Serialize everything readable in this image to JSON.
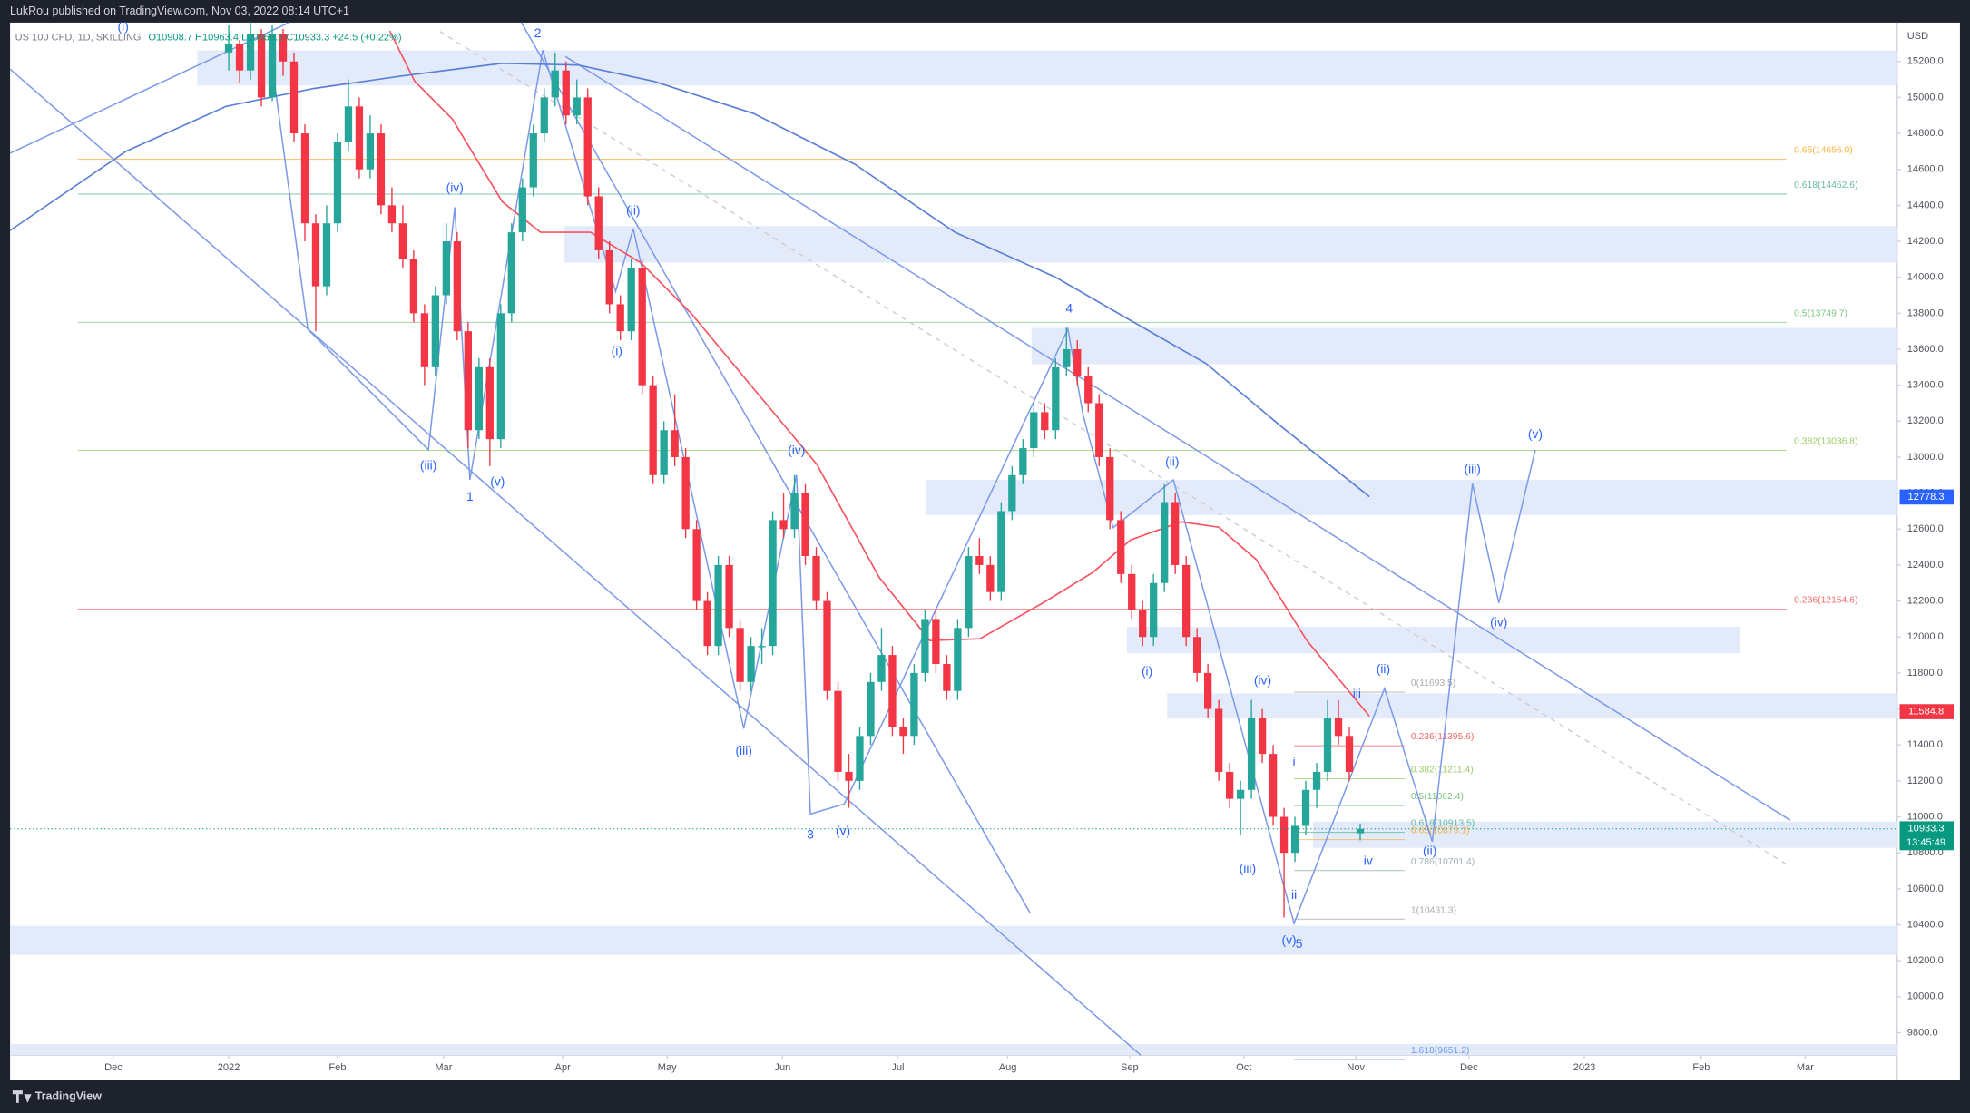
{
  "chart_data": {
    "type": "candlestick",
    "header": "LukRou published on TradingView.com, Nov 03, 2022 08:14 UTC+1",
    "symbol": "US 100 CFD, 1D, SKILLING",
    "legend_values": "O10908.7 H10963.4 L10869.2 C10933.3 +24.5 (+0.22%)",
    "currency": "USD",
    "footer": "TradingView",
    "up_color": "#26a69a",
    "down_color": "#f23645",
    "xlim": [
      -40.2,
      306.7
    ],
    "ylim": [
      9535,
      15416
    ],
    "xticks": [
      {
        "value": -21.2,
        "label": "Dec"
      },
      {
        "value": 0,
        "label": "2022"
      },
      {
        "value": 20,
        "label": "Feb"
      },
      {
        "value": 39.5,
        "label": "Mar"
      },
      {
        "value": 61.4,
        "label": "Apr"
      },
      {
        "value": 80.6,
        "label": "May"
      },
      {
        "value": 101.8,
        "label": "Jun"
      },
      {
        "value": 123,
        "label": "Jul"
      },
      {
        "value": 143.2,
        "label": "Aug"
      },
      {
        "value": 165.6,
        "label": "Sep"
      },
      {
        "value": 186.6,
        "label": "Oct"
      },
      {
        "value": 207.2,
        "label": "Nov"
      },
      {
        "value": 228,
        "label": "Dec"
      },
      {
        "value": 249.2,
        "label": "2023"
      },
      {
        "value": 270.7,
        "label": "Feb"
      },
      {
        "value": 289.8,
        "label": "Mar"
      }
    ],
    "yticks": [
      {
        "value": 15200,
        "label": "15200.0"
      },
      {
        "value": 15000,
        "label": "15000.0"
      },
      {
        "value": 14800,
        "label": "14800.0"
      },
      {
        "value": 14600,
        "label": "14600.0"
      },
      {
        "value": 14400,
        "label": "14400.0"
      },
      {
        "value": 14200,
        "label": "14200.0"
      },
      {
        "value": 14000,
        "label": "14000.0"
      },
      {
        "value": 13800,
        "label": "13800.0"
      },
      {
        "value": 13600,
        "label": "13600.0"
      },
      {
        "value": 13400,
        "label": "13400.0"
      },
      {
        "value": 13200,
        "label": "13200.0"
      },
      {
        "value": 13000,
        "label": "13000.0"
      },
      {
        "value": 12800,
        "label": "12800.0"
      },
      {
        "value": 12600,
        "label": "12600.0"
      },
      {
        "value": 12400,
        "label": "12400.0"
      },
      {
        "value": 12200,
        "label": "12200.0"
      },
      {
        "value": 12000,
        "label": "12000.0"
      },
      {
        "value": 11800,
        "label": "11800.0"
      },
      {
        "value": 11600,
        "label": "11600.0"
      },
      {
        "value": 11400,
        "label": "11400.0"
      },
      {
        "value": 11200,
        "label": "11200.0"
      },
      {
        "value": 11000,
        "label": "11000.0"
      },
      {
        "value": 10800,
        "label": "10800.0"
      },
      {
        "value": 10600,
        "label": "10600.0"
      },
      {
        "value": 10400,
        "label": "10400.0"
      },
      {
        "value": 10200,
        "label": "10200.0"
      },
      {
        "value": 10000,
        "label": "10000.0"
      },
      {
        "value": 9800,
        "label": "9800.0"
      }
    ],
    "candles": [
      [
        0,
        15250,
        15400,
        15150,
        15300
      ],
      [
        2,
        15300,
        15320,
        15080,
        15150
      ],
      [
        4,
        15150,
        15420,
        15100,
        15350
      ],
      [
        6,
        15350,
        15380,
        14950,
        15000
      ],
      [
        8,
        15000,
        15400,
        14980,
        15350
      ],
      [
        10,
        15350,
        15380,
        15120,
        15200
      ],
      [
        12,
        15200,
        15250,
        14750,
        14800
      ],
      [
        14,
        14800,
        14850,
        14200,
        14300
      ],
      [
        16,
        14300,
        14350,
        13700,
        13950
      ],
      [
        18,
        13950,
        14400,
        13900,
        14300
      ],
      [
        20,
        14300,
        14800,
        14250,
        14750
      ],
      [
        22,
        14750,
        15100,
        14700,
        14950
      ],
      [
        24,
        14950,
        15000,
        14550,
        14600
      ],
      [
        26,
        14600,
        14900,
        14550,
        14800
      ],
      [
        28,
        14800,
        14850,
        14350,
        14400
      ],
      [
        30,
        14400,
        14500,
        14250,
        14300
      ],
      [
        32,
        14300,
        14400,
        14050,
        14100
      ],
      [
        34,
        14100,
        14150,
        13750,
        13800
      ],
      [
        36,
        13800,
        13850,
        13400,
        13500
      ],
      [
        38,
        13500,
        13950,
        13450,
        13900
      ],
      [
        40,
        13900,
        14300,
        13850,
        14200
      ],
      [
        42,
        14200,
        14250,
        13650,
        13700
      ],
      [
        44,
        13700,
        13750,
        13050,
        13150
      ],
      [
        46,
        13150,
        13550,
        13100,
        13500
      ],
      [
        48,
        13500,
        13550,
        12950,
        13100
      ],
      [
        50,
        13100,
        13850,
        13050,
        13800
      ],
      [
        52,
        13800,
        14300,
        13750,
        14250
      ],
      [
        54,
        14250,
        14550,
        14200,
        14500
      ],
      [
        56,
        14500,
        14850,
        14450,
        14800
      ],
      [
        58,
        14800,
        15050,
        14750,
        15000
      ],
      [
        60,
        15000,
        15250,
        14950,
        15150
      ],
      [
        62,
        15150,
        15200,
        14850,
        14900
      ],
      [
        64,
        14900,
        15100,
        14850,
        15000
      ],
      [
        66,
        15000,
        15050,
        14400,
        14450
      ],
      [
        68,
        14450,
        14500,
        14100,
        14150
      ],
      [
        70,
        14150,
        14200,
        13800,
        13850
      ],
      [
        72,
        13850,
        13900,
        13650,
        13700
      ],
      [
        74,
        13700,
        14100,
        13650,
        14050
      ],
      [
        76,
        14050,
        14100,
        13350,
        13400
      ],
      [
        78,
        13400,
        13450,
        12850,
        12900
      ],
      [
        80,
        12900,
        13200,
        12850,
        13150
      ],
      [
        82,
        13150,
        13350,
        12950,
        13000
      ],
      [
        84,
        13000,
        13050,
        12550,
        12600
      ],
      [
        86,
        12600,
        12650,
        12150,
        12200
      ],
      [
        88,
        12200,
        12250,
        11900,
        11950
      ],
      [
        90,
        11950,
        12450,
        11900,
        12400
      ],
      [
        92,
        12400,
        12450,
        12000,
        12050
      ],
      [
        94,
        12050,
        12100,
        11700,
        11750
      ],
      [
        96,
        11750,
        12000,
        11700,
        11950
      ],
      [
        98,
        11950,
        12050,
        11850,
        11950
      ],
      [
        100,
        11950,
        12700,
        11900,
        12650
      ],
      [
        102,
        12650,
        12800,
        12550,
        12600
      ],
      [
        104,
        12600,
        12900,
        12550,
        12800
      ],
      [
        106,
        12800,
        12850,
        12400,
        12450
      ],
      [
        108,
        12450,
        12500,
        12150,
        12200
      ],
      [
        110,
        12200,
        12250,
        11650,
        11700
      ],
      [
        112,
        11700,
        11750,
        11200,
        11250
      ],
      [
        114,
        11250,
        11350,
        11050,
        11200
      ],
      [
        116,
        11200,
        11500,
        11150,
        11450
      ],
      [
        118,
        11450,
        11800,
        11400,
        11750
      ],
      [
        120,
        11750,
        12050,
        11700,
        11900
      ],
      [
        122,
        11900,
        11950,
        11450,
        11500
      ],
      [
        124,
        11500,
        11550,
        11350,
        11450
      ],
      [
        126,
        11450,
        11850,
        11400,
        11800
      ],
      [
        128,
        11800,
        12150,
        11750,
        12100
      ],
      [
        130,
        12100,
        12150,
        11800,
        11850
      ],
      [
        132,
        11850,
        11900,
        11650,
        11700
      ],
      [
        134,
        11700,
        12100,
        11650,
        12050
      ],
      [
        136,
        12050,
        12500,
        12000,
        12450
      ],
      [
        138,
        12450,
        12550,
        12350,
        12400
      ],
      [
        140,
        12400,
        12450,
        12200,
        12250
      ],
      [
        142,
        12250,
        12750,
        12200,
        12700
      ],
      [
        144,
        12700,
        12950,
        12650,
        12900
      ],
      [
        146,
        12900,
        13100,
        12850,
        13050
      ],
      [
        148,
        13050,
        13300,
        13000,
        13250
      ],
      [
        150,
        13250,
        13300,
        13100,
        13150
      ],
      [
        152,
        13150,
        13550,
        13100,
        13500
      ],
      [
        154,
        13500,
        13720,
        13450,
        13600
      ],
      [
        156,
        13600,
        13650,
        13400,
        13450
      ],
      [
        158,
        13450,
        13500,
        13250,
        13300
      ],
      [
        160,
        13300,
        13350,
        12950,
        13000
      ],
      [
        162,
        13000,
        13050,
        12600,
        12650
      ],
      [
        164,
        12650,
        12700,
        12300,
        12350
      ],
      [
        166,
        12350,
        12400,
        12100,
        12150
      ],
      [
        168,
        12150,
        12200,
        11950,
        12000
      ],
      [
        170,
        12000,
        12350,
        11950,
        12300
      ],
      [
        172,
        12300,
        12850,
        12250,
        12750
      ],
      [
        174,
        12750,
        12800,
        12350,
        12400
      ],
      [
        176,
        12400,
        12450,
        11950,
        12000
      ],
      [
        178,
        12000,
        12050,
        11750,
        11800
      ],
      [
        180,
        11800,
        11850,
        11550,
        11600
      ],
      [
        182,
        11600,
        11650,
        11200,
        11250
      ],
      [
        184,
        11250,
        11300,
        11050,
        11100
      ],
      [
        186,
        11100,
        11200,
        10900,
        11150
      ],
      [
        188,
        11150,
        11650,
        11100,
        11550
      ],
      [
        190,
        11550,
        11600,
        11300,
        11350
      ],
      [
        192,
        11350,
        11400,
        10950,
        11000
      ],
      [
        194,
        11000,
        11050,
        10440,
        10800
      ],
      [
        196,
        10800,
        11000,
        10750,
        10950
      ],
      [
        198,
        10950,
        11200,
        10900,
        11150
      ],
      [
        200,
        11150,
        11300,
        11050,
        11250
      ],
      [
        202,
        11250,
        11650,
        11200,
        11550
      ],
      [
        204,
        11550,
        11650,
        11400,
        11450
      ],
      [
        206,
        11450,
        11500,
        11200,
        11250
      ],
      [
        208,
        10908.7,
        10963.4,
        10869.2,
        10933.3
      ]
    ],
    "moving_averages": [
      {
        "color": "#f7525f",
        "x": [
          29.6,
          34.2,
          41.1,
          50.3,
          57.3,
          66.5,
          75.8,
          85,
          96.5,
          108.1,
          119.6,
          128.9,
          138.1,
          149.7,
          158.9,
          165.8,
          175.1,
          182,
          188.9,
          198.2,
          209.7
        ],
        "values": [
          15370,
          15090,
          14880,
          14420,
          14250,
          14250,
          14080,
          13800,
          13380,
          12960,
          12330,
          11980,
          11990,
          12190,
          12360,
          12540,
          12640,
          12610,
          12430,
          11980,
          11560
        ]
      },
      {
        "color": "#5b7fd6",
        "x": [
          -40.2,
          -18.9,
          -0.5,
          15.7,
          31.9,
          50.3,
          64.2,
          78.1,
          96.5,
          115,
          133.5,
          152,
          165.8,
          179.7,
          193.5,
          209.7
        ],
        "values": [
          14260,
          14700,
          14950,
          15050,
          15120,
          15190,
          15180,
          15090,
          14910,
          14630,
          14250,
          14000,
          13760,
          13520,
          13170,
          12780
        ]
      }
    ],
    "fib_sets": [
      [
        {
          "value": 14656.0,
          "label": "0.65(14656.0)",
          "color": "#f5a623"
        },
        {
          "value": 14462.6,
          "label": "0.618(14462.6)",
          "color": "#4caf93"
        },
        {
          "value": 13749.7,
          "label": "0.5(13749.7)",
          "color": "#66bb6a"
        },
        {
          "value": 13036.8,
          "label": "0.382(13036.8)",
          "color": "#8bc34a"
        },
        {
          "value": 12154.6,
          "label": "0.236(12154.6)",
          "color": "#ef5350"
        }
      ],
      [
        {
          "value": 11693.5,
          "label": "0(11693.5)",
          "color": "#9e9e9e"
        },
        {
          "value": 11395.6,
          "label": "0.236(11395.6)",
          "color": "#ef5350"
        },
        {
          "value": 11211.4,
          "label": "0.382(11211.4)",
          "color": "#8bc34a"
        },
        {
          "value": 11062.4,
          "label": "0.5(11062.4)",
          "color": "#66bb6a"
        },
        {
          "value": 10913.5,
          "label": "0.618(10913.5)",
          "color": "#4caf93"
        },
        {
          "value": 10873.1,
          "label": "0.65(10873.1)",
          "color": "#f5a623"
        },
        {
          "value": 10701.4,
          "label": "0.786(10701.4)",
          "color": "#90a4ae"
        },
        {
          "value": 10431.3,
          "label": "1(10431.3)",
          "color": "#9e9e9e"
        },
        {
          "value": 9651.2,
          "label": "1.618(9651.2)",
          "color": "#5b8def"
        }
      ]
    ],
    "price_badges": [
      {
        "value": 12778.3,
        "color": "#2962ff"
      },
      {
        "value": 11584.8,
        "color": "#f23645"
      },
      {
        "value": 10933.3,
        "color": "#089981"
      }
    ],
    "countdown": "13:45:49",
    "annotations": [
      "(i)",
      "2",
      "(iv)",
      "(iii)",
      "1",
      "(v)",
      "(ii)",
      "(i)",
      "(iv)",
      "(iii)",
      "3",
      "(v)",
      "4",
      "(ii)",
      "(i)",
      "(iv)",
      "(iii)",
      "(v)",
      "5",
      "i",
      "ii",
      "iii",
      "iv",
      "(ii)",
      "(ii)",
      "(iii)",
      "(iv)",
      "(v)"
    ]
  }
}
